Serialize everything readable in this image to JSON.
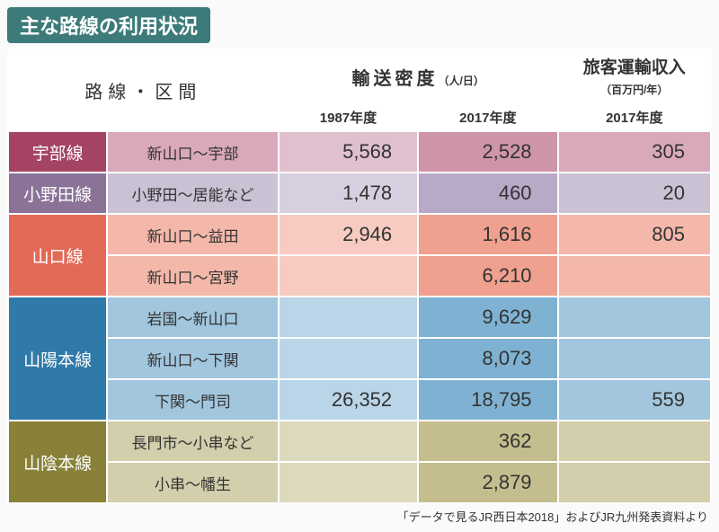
{
  "title": "主な路線の利用状況",
  "headers": {
    "route": "路線・区間",
    "density": "輸送密度",
    "density_unit": "（人/日）",
    "revenue": "旅客運輸収入",
    "revenue_unit": "（百万円/年）",
    "y1987": "1987年度",
    "y2017": "2017年度",
    "y2017b": "2017年度"
  },
  "colors": {
    "title_bg": "#3d7a7a",
    "ube_hdr": "#a54362",
    "ube_sec": "#d9a9bb",
    "ube_c1": "#e0c0ce",
    "ube_c2": "#ce94a8",
    "ube_c3": "#d9a9bb",
    "onoda_hdr": "#8b7398",
    "onoda_sec": "#cbc1d5",
    "onoda_c1": "#d7cfdf",
    "onoda_c2": "#b8a9c7",
    "onoda_c3": "#cbc1d5",
    "yama_hdr": "#e26a57",
    "yama_sec": "#f4b8ab",
    "yama_c1": "#f7cbc1",
    "yama_c2": "#efa08e",
    "yama_c3": "#f4b8ab",
    "sanyo_hdr": "#2f7aa8",
    "sanyo_sec": "#a1c6de",
    "sanyo_c1": "#b9d5e7",
    "sanyo_c2": "#7fb2d2",
    "sanyo_c3": "#a1c6de",
    "sanin_hdr": "#8a8138",
    "sanin_sec": "#d3ceac",
    "sanin_c1": "#ddd9bd",
    "sanin_c2": "#c4bd8e",
    "sanin_c3": "#d3ceac"
  },
  "rows": [
    {
      "line": "宇部線",
      "section": "新山口～宇部",
      "d1987": "5,568",
      "d2017": "2,528",
      "rev": "305",
      "palette": "ube",
      "rowspan": 1
    },
    {
      "line": "小野田線",
      "section": "小野田～居能など",
      "d1987": "1,478",
      "d2017": "460",
      "rev": "20",
      "palette": "onoda",
      "rowspan": 1
    },
    {
      "line": "山口線",
      "section": "新山口～益田",
      "d1987": "2,946",
      "d2017": "1,616",
      "rev": "805",
      "palette": "yama",
      "rowspan": 2
    },
    {
      "section": "新山口～宮野",
      "d1987": "",
      "d2017": "6,210",
      "rev": "",
      "palette": "yama"
    },
    {
      "line": "山陽本線",
      "section": "岩国～新山口",
      "d1987": "",
      "d2017": "9,629",
      "rev": "",
      "palette": "sanyo",
      "rowspan": 3
    },
    {
      "section": "新山口～下関",
      "d1987": "",
      "d2017": "8,073",
      "rev": "",
      "palette": "sanyo"
    },
    {
      "section": "下関～門司",
      "d1987": "26,352",
      "d2017": "18,795",
      "rev": "559",
      "palette": "sanyo"
    },
    {
      "line": "山陰本線",
      "section": "長門市～小串など",
      "d1987": "",
      "d2017": "362",
      "rev": "",
      "palette": "sanin",
      "rowspan": 2
    },
    {
      "section": "小串～幡生",
      "d1987": "",
      "d2017": "2,879",
      "rev": "",
      "palette": "sanin"
    }
  ],
  "footnote": "「データで見るJR西日本2018」およびJR九州発表資料より"
}
